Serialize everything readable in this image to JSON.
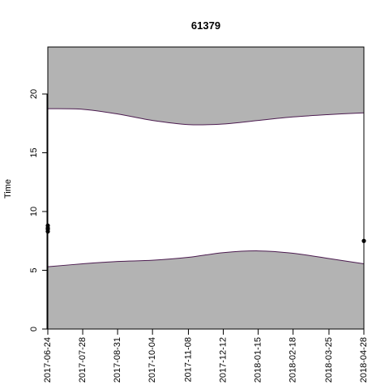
{
  "chart_data": {
    "type": "area",
    "title": "61379",
    "xlabel": "",
    "ylabel": "Time",
    "x_type": "date",
    "xlim": [
      "2017-06-24",
      "2018-04-28"
    ],
    "ylim": [
      0,
      24
    ],
    "x_ticks": [
      "2017-06-24",
      "2017-07-28",
      "2017-08-31",
      "2017-10-04",
      "2017-11-08",
      "2017-12-12",
      "2018-01-15",
      "2018-02-18",
      "2018-03-25",
      "2018-04-28"
    ],
    "y_ticks": [
      0,
      5,
      10,
      15,
      20
    ],
    "grid": false,
    "fill_color": "#b3b3b3",
    "line_color": "#4b1b4f",
    "point_color": "#000000",
    "series": [
      {
        "role": "upper-boundary",
        "dates": [
          "2017-06-24",
          "2017-07-28",
          "2017-08-31",
          "2017-10-04",
          "2017-11-08",
          "2017-12-12",
          "2018-01-15",
          "2018-02-18",
          "2018-03-25",
          "2018-04-28"
        ],
        "values": [
          18.75,
          18.7,
          18.3,
          17.75,
          17.4,
          17.45,
          17.75,
          18.05,
          18.25,
          18.4
        ]
      },
      {
        "role": "lower-boundary",
        "dates": [
          "2017-06-24",
          "2017-07-28",
          "2017-08-31",
          "2017-10-04",
          "2017-11-08",
          "2017-12-12",
          "2018-01-15",
          "2018-02-18",
          "2018-03-25",
          "2018-04-28"
        ],
        "values": [
          5.3,
          5.55,
          5.75,
          5.85,
          6.1,
          6.5,
          6.65,
          6.45,
          6.0,
          5.55
        ]
      },
      {
        "role": "points",
        "points": [
          {
            "x": "2017-06-24",
            "y": 8.3
          },
          {
            "x": "2017-06-24",
            "y": 8.5
          },
          {
            "x": "2017-06-24",
            "y": 8.6
          },
          {
            "x": "2017-06-24",
            "y": 8.8
          },
          {
            "x": "2018-04-28",
            "y": 7.5
          }
        ]
      }
    ]
  }
}
